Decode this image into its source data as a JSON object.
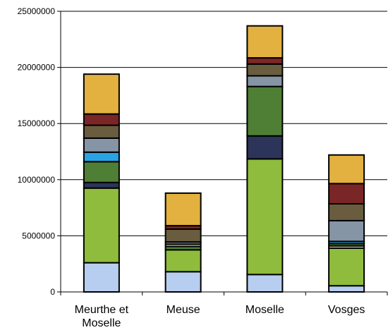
{
  "chart_data": {
    "type": "bar",
    "stacked": true,
    "title": "",
    "xlabel": "",
    "ylabel": "",
    "categories": [
      "Meurthe et Moselle",
      "Meuse",
      "Moselle",
      "Vosges"
    ],
    "ylim": [
      0,
      25000000
    ],
    "yticks": [
      0,
      5000000,
      10000000,
      15000000,
      20000000,
      25000000
    ],
    "ytick_labels": [
      "0",
      "5000000",
      "10000000",
      "15000000",
      "20000000",
      "25000000"
    ],
    "grid": "horizontal",
    "legend": "none",
    "series": [
      {
        "color": "#b8cef0",
        "values": [
          2600000,
          1800000,
          1550000,
          550000
        ]
      },
      {
        "color": "#8fbc3c",
        "values": [
          6650000,
          1950000,
          10300000,
          3350000
        ]
      },
      {
        "color": "#e9e9cf",
        "values": [
          0,
          0,
          0,
          200000
        ]
      },
      {
        "color": "#2c3459",
        "values": [
          500000,
          0,
          2050000,
          0
        ]
      },
      {
        "color": "#4f7f35",
        "values": [
          1850000,
          300000,
          4400000,
          200000
        ]
      },
      {
        "color": "#dde4c8",
        "values": [
          0,
          200000,
          0,
          0
        ]
      },
      {
        "color": "#2aa3e4",
        "values": [
          850000,
          0,
          0,
          200000
        ]
      },
      {
        "color": "#8695a6",
        "values": [
          1250000,
          200000,
          950000,
          1850000
        ]
      },
      {
        "color": "#6a5d3f",
        "values": [
          1150000,
          1150000,
          1050000,
          1500000
        ]
      },
      {
        "color": "#7b2626",
        "values": [
          1000000,
          300000,
          550000,
          1800000
        ]
      },
      {
        "color": "#e2b140",
        "values": [
          3550000,
          2900000,
          2850000,
          2550000
        ]
      }
    ]
  }
}
